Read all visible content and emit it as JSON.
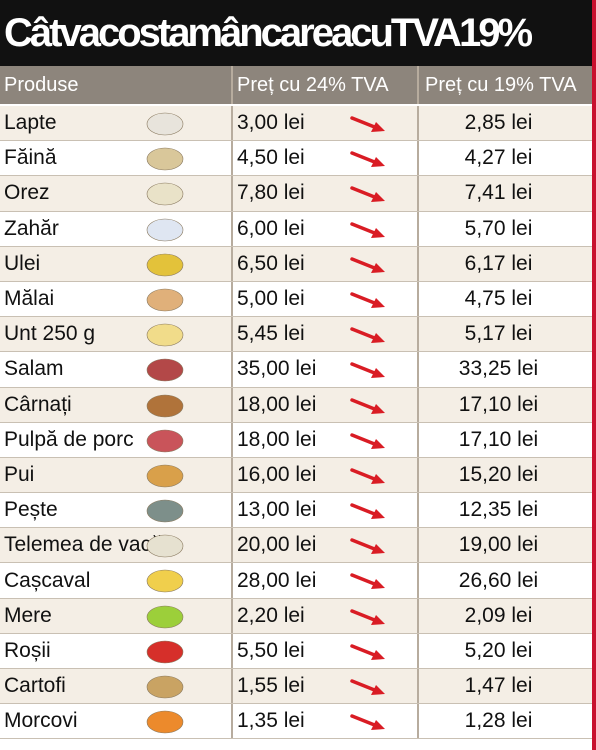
{
  "title": "CâtvacostamâncareacuTVA19%",
  "table": {
    "header": [
      "Produse",
      "Preț cu 24% TVA",
      "Preț cu 19% TVA"
    ],
    "rows": [
      [
        "Lapte",
        "3,00 lei",
        "2,85 lei"
      ],
      [
        "Făină",
        "4,50 lei",
        "4,27 lei"
      ],
      [
        "Orez",
        "7,80 lei",
        "7,41 lei"
      ],
      [
        "Zahăr",
        "6,00 lei",
        "5,70 lei"
      ],
      [
        "Ulei",
        "6,50 lei",
        "6,17 lei"
      ],
      [
        "Mălai",
        "5,00 lei",
        "4,75 lei"
      ],
      [
        "Unt 250 g",
        "5,45 lei",
        "5,17 lei"
      ],
      [
        "Salam",
        "35,00 lei",
        "33,25 lei"
      ],
      [
        "Cârnați",
        "18,00 lei",
        "17,10 lei"
      ],
      [
        "Pulpă de porc",
        "18,00 lei",
        "17,10 lei"
      ],
      [
        "Pui",
        "16,00 lei",
        "15,20 lei"
      ],
      [
        "Pește",
        "13,00 lei",
        "12,35 lei"
      ],
      [
        "Telemea de vacă",
        "20,00 lei",
        "19,00 lei"
      ],
      [
        "Cașcaval",
        "28,00 lei",
        "26,60 lei"
      ],
      [
        "Mere",
        "2,20 lei",
        "2,09 lei"
      ],
      [
        "Roșii",
        "5,50 lei",
        "5,20 lei"
      ],
      [
        "Cartofi",
        "1,55 lei",
        "1,47 lei"
      ],
      [
        "Morcovi",
        "1,35 lei",
        "1,28 lei"
      ]
    ]
  }
}
